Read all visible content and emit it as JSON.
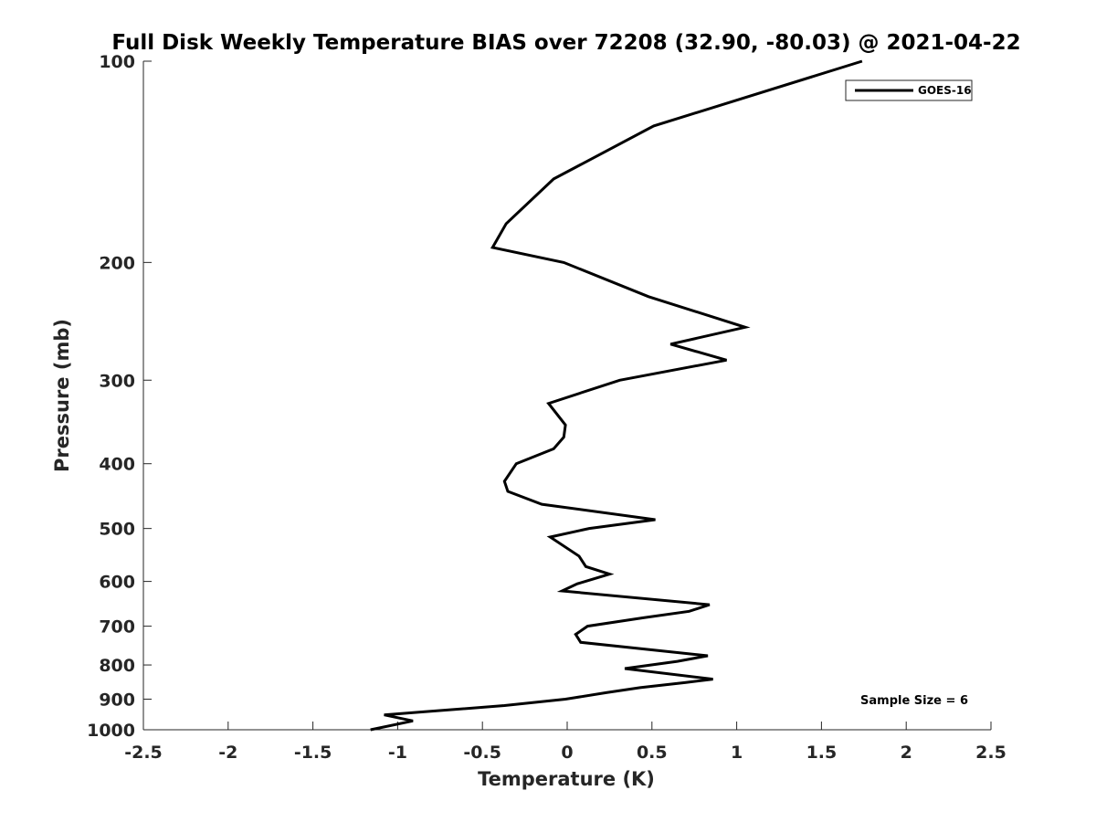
{
  "chart_data": {
    "type": "line",
    "title": "Full Disk Weekly Temperature BIAS over 72208 (32.90, -80.03) @ 2021-04-22",
    "xlabel": "Temperature (K)",
    "ylabel": "Pressure (mb)",
    "xlim": [
      -2.5,
      2.5
    ],
    "ylim": [
      100,
      1000
    ],
    "y_scale": "log",
    "y_reversed": true,
    "xticks": [
      "-2.5",
      "-2",
      "-1.5",
      "-1",
      "-0.5",
      "0",
      "0.5",
      "1",
      "1.5",
      "2",
      "2.5"
    ],
    "xtick_values": [
      -2.5,
      -2,
      -1.5,
      -1,
      -0.5,
      0,
      0.5,
      1,
      1.5,
      2,
      2.5
    ],
    "yticks": [
      "100",
      "200",
      "300",
      "400",
      "500",
      "600",
      "700",
      "800",
      "900",
      "1000"
    ],
    "ytick_values": [
      100,
      200,
      300,
      400,
      500,
      600,
      700,
      800,
      900,
      1000
    ],
    "grid": false,
    "legend_position": "top-right",
    "series": [
      {
        "name": "GOES-16",
        "color": "#000000",
        "points": [
          {
            "t": 1.74,
            "p": 100
          },
          {
            "t": 0.51,
            "p": 125
          },
          {
            "t": -0.08,
            "p": 150
          },
          {
            "t": -0.36,
            "p": 175
          },
          {
            "t": -0.44,
            "p": 190
          },
          {
            "t": -0.02,
            "p": 200
          },
          {
            "t": 0.48,
            "p": 225
          },
          {
            "t": 1.05,
            "p": 250
          },
          {
            "t": 0.61,
            "p": 265
          },
          {
            "t": 0.94,
            "p": 280
          },
          {
            "t": 0.31,
            "p": 300
          },
          {
            "t": -0.11,
            "p": 325
          },
          {
            "t": -0.01,
            "p": 350
          },
          {
            "t": -0.02,
            "p": 365
          },
          {
            "t": -0.08,
            "p": 380
          },
          {
            "t": -0.3,
            "p": 400
          },
          {
            "t": -0.37,
            "p": 425
          },
          {
            "t": -0.35,
            "p": 440
          },
          {
            "t": -0.15,
            "p": 460
          },
          {
            "t": 0.52,
            "p": 485
          },
          {
            "t": 0.13,
            "p": 500
          },
          {
            "t": -0.1,
            "p": 515
          },
          {
            "t": 0.07,
            "p": 550
          },
          {
            "t": 0.11,
            "p": 570
          },
          {
            "t": 0.25,
            "p": 585
          },
          {
            "t": 0.06,
            "p": 605
          },
          {
            "t": -0.03,
            "p": 620
          },
          {
            "t": 0.84,
            "p": 650
          },
          {
            "t": 0.72,
            "p": 665
          },
          {
            "t": 0.45,
            "p": 680
          },
          {
            "t": 0.12,
            "p": 700
          },
          {
            "t": 0.05,
            "p": 720
          },
          {
            "t": 0.08,
            "p": 740
          },
          {
            "t": 0.83,
            "p": 775
          },
          {
            "t": 0.65,
            "p": 790
          },
          {
            "t": 0.34,
            "p": 810
          },
          {
            "t": 0.86,
            "p": 840
          },
          {
            "t": 0.7,
            "p": 850
          },
          {
            "t": 0.43,
            "p": 865
          },
          {
            "t": 0.23,
            "p": 880
          },
          {
            "t": -0.01,
            "p": 900
          },
          {
            "t": -0.37,
            "p": 920
          },
          {
            "t": -0.84,
            "p": 940
          },
          {
            "t": -1.08,
            "p": 950
          },
          {
            "t": -0.91,
            "p": 970
          },
          {
            "t": -1.16,
            "p": 1000
          }
        ]
      }
    ],
    "annotation": "Sample Size = 6"
  }
}
